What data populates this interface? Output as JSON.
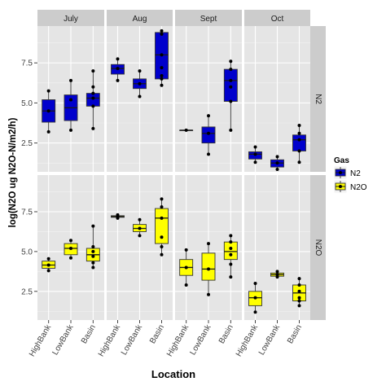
{
  "chart_data": {
    "type": "boxplot",
    "title": "",
    "xlabel": "Location",
    "ylabel": "log(N2O ug N2O-N/m2/h)",
    "facet_columns": [
      "July",
      "Aug",
      "Sept",
      "Oct"
    ],
    "facet_rows": [
      "N2",
      "N2O"
    ],
    "categories": [
      "HighBank",
      "LowBank",
      "Basin"
    ],
    "y_ticks": [
      2.5,
      5.0,
      7.5
    ],
    "y_tick_labels": [
      "2.5",
      "5.0",
      "7.5"
    ],
    "ylim": [
      0.7,
      9.8
    ],
    "legend": {
      "title": "Gas",
      "position": "right",
      "entries": [
        {
          "label": "N2",
          "color": "#0000cc"
        },
        {
          "label": "N2O",
          "color": "#ffff00"
        }
      ]
    },
    "colors": {
      "N2": "#0000cc",
      "N2O": "#ffff00",
      "panel_bg": "#e5e5e5",
      "strip_bg": "#cccccc",
      "grid": "#ffffff"
    },
    "boxes": [
      {
        "row": "N2",
        "col": "July",
        "category": "HighBank",
        "min": 3.2,
        "q1": 3.8,
        "median": 4.5,
        "q3": 5.2,
        "max": 5.75,
        "points": [
          3.2,
          4.5,
          5.75
        ]
      },
      {
        "row": "N2",
        "col": "July",
        "category": "LowBank",
        "min": 3.3,
        "q1": 3.9,
        "median": 4.7,
        "q3": 5.5,
        "max": 6.4,
        "points": [
          3.3,
          5.2,
          6.4
        ]
      },
      {
        "row": "N2",
        "col": "July",
        "category": "Basin",
        "min": 3.4,
        "q1": 4.8,
        "median": 5.3,
        "q3": 5.6,
        "max": 7.0,
        "points": [
          3.4,
          4.8,
          5.3,
          5.6,
          6.0,
          7.0
        ]
      },
      {
        "row": "N2",
        "col": "Aug",
        "category": "HighBank",
        "min": 6.4,
        "q1": 6.8,
        "median": 7.15,
        "q3": 7.4,
        "max": 7.75,
        "points": [
          6.4,
          7.15,
          7.75
        ]
      },
      {
        "row": "N2",
        "col": "Aug",
        "category": "LowBank",
        "min": 5.4,
        "q1": 5.9,
        "median": 6.2,
        "q3": 6.5,
        "max": 7.0,
        "points": [
          5.4,
          6.2,
          7.0
        ]
      },
      {
        "row": "N2",
        "col": "Aug",
        "category": "Basin",
        "min": 6.1,
        "q1": 6.5,
        "median": 8.0,
        "q3": 9.4,
        "max": 9.5,
        "points": [
          6.1,
          6.5,
          6.7,
          7.2,
          8.0,
          9.3,
          9.5
        ]
      },
      {
        "row": "N2",
        "col": "Sept",
        "category": "HighBank",
        "min": 3.3,
        "q1": 3.3,
        "median": 3.3,
        "q3": 3.3,
        "max": 3.3,
        "points": [
          3.3
        ]
      },
      {
        "row": "N2",
        "col": "Sept",
        "category": "LowBank",
        "min": 1.8,
        "q1": 2.5,
        "median": 3.1,
        "q3": 3.5,
        "max": 4.2,
        "points": [
          1.8,
          3.1,
          4.2
        ]
      },
      {
        "row": "N2",
        "col": "Sept",
        "category": "Basin",
        "min": 3.3,
        "q1": 5.1,
        "median": 6.4,
        "q3": 7.1,
        "max": 7.6,
        "points": [
          3.3,
          5.1,
          6.0,
          6.4,
          7.1,
          7.6
        ]
      },
      {
        "row": "N2",
        "col": "Oct",
        "category": "HighBank",
        "min": 1.3,
        "q1": 1.5,
        "median": 1.8,
        "q3": 1.95,
        "max": 2.25,
        "points": [
          1.3,
          1.8,
          2.25
        ]
      },
      {
        "row": "N2",
        "col": "Oct",
        "category": "LowBank",
        "min": 0.85,
        "q1": 1.0,
        "median": 1.25,
        "q3": 1.45,
        "max": 1.65,
        "points": [
          0.85,
          1.25,
          1.65
        ]
      },
      {
        "row": "N2",
        "col": "Oct",
        "category": "Basin",
        "min": 1.3,
        "q1": 2.0,
        "median": 2.7,
        "q3": 3.0,
        "max": 3.6,
        "points": [
          1.3,
          2.0,
          2.7,
          3.1,
          3.6
        ]
      },
      {
        "row": "N2O",
        "col": "July",
        "category": "HighBank",
        "min": 3.8,
        "q1": 3.95,
        "median": 4.15,
        "q3": 4.4,
        "max": 4.55,
        "points": [
          3.8,
          4.15,
          4.55
        ]
      },
      {
        "row": "N2O",
        "col": "July",
        "category": "LowBank",
        "min": 4.6,
        "q1": 4.8,
        "median": 5.2,
        "q3": 5.5,
        "max": 5.7,
        "points": [
          4.6,
          5.2,
          5.7
        ]
      },
      {
        "row": "N2O",
        "col": "July",
        "category": "Basin",
        "min": 4.0,
        "q1": 4.4,
        "median": 4.8,
        "q3": 5.2,
        "max": 6.6,
        "points": [
          4.0,
          4.3,
          4.7,
          5.0,
          5.3,
          6.6
        ]
      },
      {
        "row": "N2O",
        "col": "Aug",
        "category": "HighBank",
        "min": 7.1,
        "q1": 7.15,
        "median": 7.2,
        "q3": 7.25,
        "max": 7.3,
        "points": [
          7.1,
          7.2,
          7.3
        ]
      },
      {
        "row": "N2O",
        "col": "Aug",
        "category": "LowBank",
        "min": 6.0,
        "q1": 6.25,
        "median": 6.45,
        "q3": 6.7,
        "max": 7.0,
        "points": [
          6.0,
          6.45,
          7.0
        ]
      },
      {
        "row": "N2O",
        "col": "Aug",
        "category": "Basin",
        "min": 4.8,
        "q1": 5.5,
        "median": 7.1,
        "q3": 7.7,
        "max": 8.3,
        "points": [
          4.8,
          5.3,
          5.9,
          7.1,
          7.8,
          8.3
        ]
      },
      {
        "row": "N2O",
        "col": "Sept",
        "category": "HighBank",
        "min": 2.9,
        "q1": 3.5,
        "median": 4.0,
        "q3": 4.5,
        "max": 5.1,
        "points": [
          2.9,
          4.0,
          5.1
        ]
      },
      {
        "row": "N2O",
        "col": "Sept",
        "category": "LowBank",
        "min": 2.3,
        "q1": 3.2,
        "median": 3.9,
        "q3": 4.9,
        "max": 5.5,
        "points": [
          2.3,
          3.9,
          5.5
        ]
      },
      {
        "row": "N2O",
        "col": "Sept",
        "category": "Basin",
        "min": 3.4,
        "q1": 4.5,
        "median": 5.0,
        "q3": 5.6,
        "max": 6.0,
        "points": [
          3.4,
          4.2,
          4.8,
          5.2,
          5.6,
          6.0
        ]
      },
      {
        "row": "N2O",
        "col": "Oct",
        "category": "HighBank",
        "min": 1.2,
        "q1": 1.6,
        "median": 2.1,
        "q3": 2.5,
        "max": 3.0,
        "points": [
          1.2,
          2.1,
          3.0
        ]
      },
      {
        "row": "N2O",
        "col": "Oct",
        "category": "LowBank",
        "min": 3.4,
        "q1": 3.45,
        "median": 3.55,
        "q3": 3.65,
        "max": 3.75,
        "points": [
          3.4,
          3.55,
          3.75
        ]
      },
      {
        "row": "N2O",
        "col": "Oct",
        "category": "Basin",
        "min": 1.6,
        "q1": 1.9,
        "median": 2.4,
        "q3": 2.9,
        "max": 3.3,
        "points": [
          1.6,
          1.9,
          2.1,
          2.5,
          2.9,
          3.3
        ]
      }
    ]
  }
}
